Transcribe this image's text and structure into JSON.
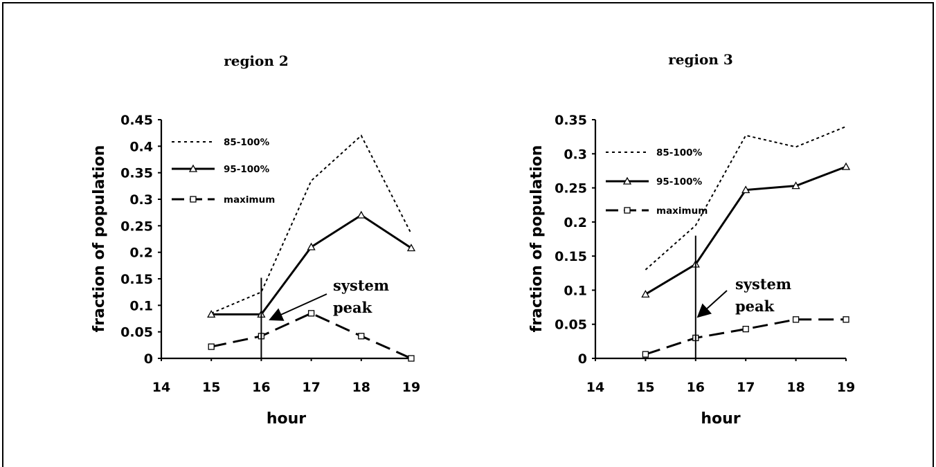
{
  "chart_data": [
    {
      "type": "line",
      "title": "region 2",
      "xlabel": "hour",
      "ylabel": "fraction of population",
      "x": [
        15,
        16,
        17,
        18,
        19
      ],
      "xlim": [
        14,
        19
      ],
      "xticks": [
        "14",
        "15",
        "16",
        "17",
        "18",
        "19"
      ],
      "ylim": [
        0,
        0.45
      ],
      "yticks": [
        "0",
        "0.05",
        "0.1",
        "0.15",
        "0.2",
        "0.25",
        "0.3",
        "0.35",
        "0.4",
        "0.45"
      ],
      "grid": false,
      "legend_position": "top-left",
      "series": [
        {
          "name": "85-100%",
          "style": "dotted",
          "values": [
            0.085,
            0.125,
            0.335,
            0.42,
            0.235
          ]
        },
        {
          "name": "95-100%",
          "style": "solid-triangle",
          "values": [
            0.083,
            0.083,
            0.21,
            0.27,
            0.208
          ]
        },
        {
          "name": "maximum",
          "style": "dashed-square",
          "values": [
            0.022,
            0.042,
            0.085,
            0.042,
            0.0
          ]
        }
      ],
      "system_peak_hour": 16,
      "system_peak_line_top": 0.152,
      "annotation": {
        "line1": "system",
        "line2": "peak"
      }
    },
    {
      "type": "line",
      "title": "region 3",
      "xlabel": "hour",
      "ylabel": "fraction of population",
      "x": [
        15,
        16,
        17,
        18,
        19
      ],
      "xlim": [
        14,
        19
      ],
      "xticks": [
        "14",
        "15",
        "16",
        "17",
        "18",
        "19"
      ],
      "ylim": [
        0,
        0.35
      ],
      "yticks": [
        "0",
        "0.05",
        "0.1",
        "0.15",
        "0.2",
        "0.25",
        "0.3",
        "0.35"
      ],
      "grid": false,
      "legend_position": "top-left",
      "series": [
        {
          "name": "85-100%",
          "style": "dotted",
          "values": [
            0.13,
            0.195,
            0.327,
            0.31,
            0.34
          ]
        },
        {
          "name": "95-100%",
          "style": "solid-triangle",
          "values": [
            0.094,
            0.138,
            0.247,
            0.253,
            0.281
          ]
        },
        {
          "name": "maximum",
          "style": "dashed-square",
          "values": [
            0.006,
            0.03,
            0.043,
            0.057,
            0.057
          ]
        }
      ],
      "system_peak_hour": 16,
      "system_peak_line_top": 0.18,
      "annotation": {
        "line1": "system",
        "line2": "peak"
      }
    }
  ]
}
